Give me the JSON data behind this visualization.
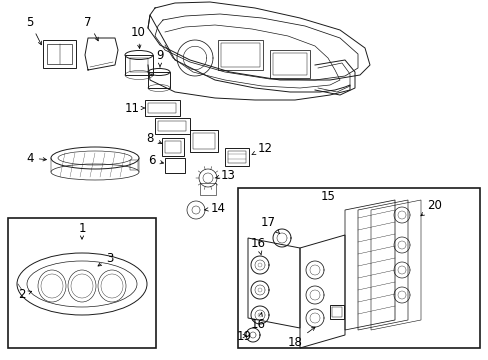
{
  "bg_color": "#ffffff",
  "line_color": "#1a1a1a",
  "fig_width": 4.89,
  "fig_height": 3.6,
  "dpi": 100,
  "font_size": 8.5,
  "lw": 0.7
}
